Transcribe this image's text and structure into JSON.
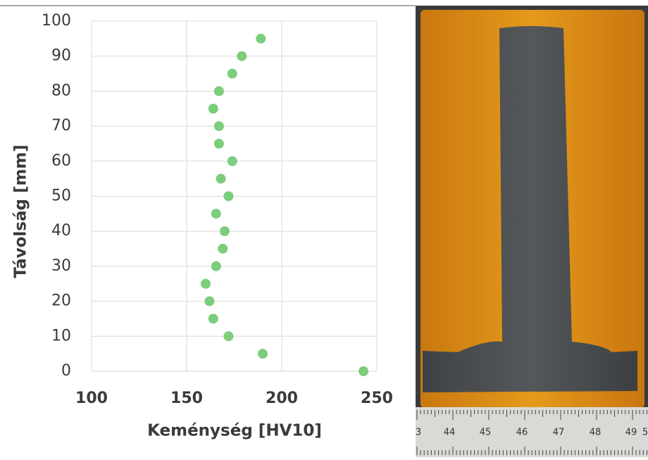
{
  "chart_data": {
    "type": "scatter",
    "x_label": "Keménység [HV10]",
    "y_label": "Távolság [mm]",
    "color": "#7ccd7c",
    "series": [
      {
        "x": [
          189,
          179,
          174,
          167,
          164,
          167,
          167,
          174,
          168,
          172,
          165.5,
          170,
          169,
          165.5,
          160,
          162,
          164,
          172,
          190,
          243
        ],
        "values": [
          95,
          90,
          85,
          80,
          75,
          70,
          65,
          60,
          55,
          50,
          45,
          40,
          35,
          30,
          25,
          20,
          15,
          10,
          5,
          0
        ]
      }
    ],
    "xlim": [
      100,
      250
    ],
    "xticks": [
      100,
      150,
      200,
      250
    ],
    "ylim": [
      0,
      100
    ],
    "yticks": [
      0,
      10,
      20,
      30,
      40,
      50,
      60,
      70,
      80,
      90,
      100
    ],
    "grid": true
  },
  "photo": {
    "ruler_labels": [
      "3",
      "44",
      "45",
      "46",
      "47",
      "48",
      "49",
      "5"
    ]
  }
}
